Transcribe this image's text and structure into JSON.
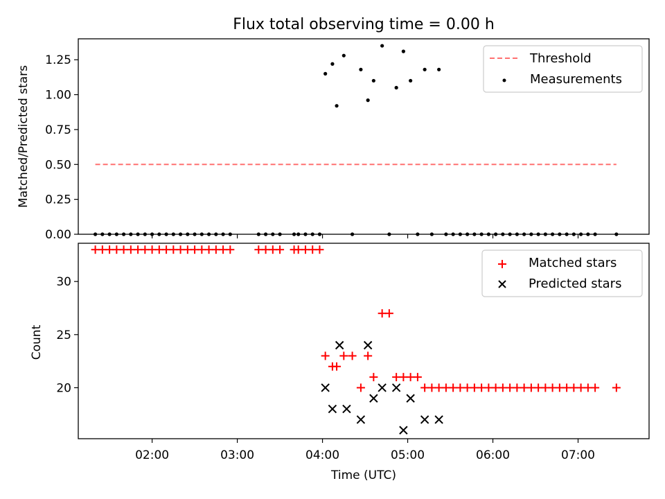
{
  "chart_data": [
    {
      "type": "scatter",
      "title": "Flux total observing time = 0.00 h",
      "xlabel": "",
      "ylabel": "Matched/Predicted stars",
      "xlim": [
        "01:08",
        "07:50"
      ],
      "ylim": [
        0,
        1.4
      ],
      "yticks": [
        "0.00",
        "0.25",
        "0.50",
        "0.75",
        "1.00",
        "1.25"
      ],
      "legend_position": "top-right",
      "series": [
        {
          "name": "Threshold",
          "style": "dashed-line",
          "color": "#ff7070",
          "points": [
            [
              "01:20",
              0.5
            ],
            [
              "07:27",
              0.5
            ]
          ]
        },
        {
          "name": "Measurements",
          "style": "dot",
          "color": "#000000",
          "points": [
            [
              "01:20",
              0
            ],
            [
              "01:25",
              0
            ],
            [
              "01:30",
              0
            ],
            [
              "01:35",
              0
            ],
            [
              "01:40",
              0
            ],
            [
              "01:45",
              0
            ],
            [
              "01:50",
              0
            ],
            [
              "01:55",
              0
            ],
            [
              "02:00",
              0
            ],
            [
              "02:05",
              0
            ],
            [
              "02:10",
              0
            ],
            [
              "02:15",
              0
            ],
            [
              "02:20",
              0
            ],
            [
              "02:25",
              0
            ],
            [
              "02:30",
              0
            ],
            [
              "02:35",
              0
            ],
            [
              "02:40",
              0
            ],
            [
              "02:45",
              0
            ],
            [
              "02:50",
              0
            ],
            [
              "02:55",
              0
            ],
            [
              "03:15",
              0
            ],
            [
              "03:20",
              0
            ],
            [
              "03:25",
              0
            ],
            [
              "03:30",
              0
            ],
            [
              "03:40",
              0
            ],
            [
              "03:43",
              0
            ],
            [
              "03:48",
              0
            ],
            [
              "03:53",
              0
            ],
            [
              "03:58",
              0
            ],
            [
              "04:02",
              1.15
            ],
            [
              "04:07",
              1.22
            ],
            [
              "04:10",
              0.92
            ],
            [
              "04:15",
              1.28
            ],
            [
              "04:21",
              0
            ],
            [
              "04:27",
              1.18
            ],
            [
              "04:32",
              0.96
            ],
            [
              "04:36",
              1.1
            ],
            [
              "04:42",
              1.35
            ],
            [
              "04:47",
              0
            ],
            [
              "04:52",
              1.05
            ],
            [
              "04:57",
              1.31
            ],
            [
              "05:02",
              1.1
            ],
            [
              "05:07",
              0
            ],
            [
              "05:12",
              1.18
            ],
            [
              "05:17",
              0
            ],
            [
              "05:22",
              1.18
            ],
            [
              "05:27",
              0
            ],
            [
              "05:32",
              0
            ],
            [
              "05:37",
              0
            ],
            [
              "05:42",
              0
            ],
            [
              "05:47",
              0
            ],
            [
              "05:52",
              0
            ],
            [
              "05:57",
              0
            ],
            [
              "06:02",
              0
            ],
            [
              "06:07",
              0
            ],
            [
              "06:12",
              0
            ],
            [
              "06:17",
              0
            ],
            [
              "06:22",
              0
            ],
            [
              "06:27",
              0
            ],
            [
              "06:32",
              0
            ],
            [
              "06:37",
              0
            ],
            [
              "06:42",
              0
            ],
            [
              "06:47",
              0
            ],
            [
              "06:52",
              0
            ],
            [
              "06:57",
              0
            ],
            [
              "07:02",
              0
            ],
            [
              "07:07",
              0
            ],
            [
              "07:12",
              0
            ],
            [
              "07:27",
              0
            ]
          ]
        }
      ]
    },
    {
      "type": "scatter",
      "title": "",
      "xlabel": "Time (UTC)",
      "ylabel": "Count",
      "xlim": [
        "01:08",
        "07:50"
      ],
      "ylim": [
        15.2,
        33.6
      ],
      "yticks": [
        "20",
        "25",
        "30"
      ],
      "xticks": [
        "02:00",
        "03:00",
        "04:00",
        "05:00",
        "06:00",
        "07:00"
      ],
      "legend_position": "top-right",
      "series": [
        {
          "name": "Matched stars",
          "style": "plus",
          "color": "#ff0000",
          "points": [
            [
              "01:20",
              33
            ],
            [
              "01:25",
              33
            ],
            [
              "01:30",
              33
            ],
            [
              "01:35",
              33
            ],
            [
              "01:40",
              33
            ],
            [
              "01:45",
              33
            ],
            [
              "01:50",
              33
            ],
            [
              "01:55",
              33
            ],
            [
              "02:00",
              33
            ],
            [
              "02:05",
              33
            ],
            [
              "02:10",
              33
            ],
            [
              "02:15",
              33
            ],
            [
              "02:20",
              33
            ],
            [
              "02:25",
              33
            ],
            [
              "02:30",
              33
            ],
            [
              "02:35",
              33
            ],
            [
              "02:40",
              33
            ],
            [
              "02:45",
              33
            ],
            [
              "02:50",
              33
            ],
            [
              "02:55",
              33
            ],
            [
              "03:15",
              33
            ],
            [
              "03:20",
              33
            ],
            [
              "03:25",
              33
            ],
            [
              "03:30",
              33
            ],
            [
              "03:40",
              33
            ],
            [
              "03:43",
              33
            ],
            [
              "03:48",
              33
            ],
            [
              "03:53",
              33
            ],
            [
              "03:58",
              33
            ],
            [
              "04:02",
              23
            ],
            [
              "04:07",
              22
            ],
            [
              "04:10",
              22
            ],
            [
              "04:15",
              23
            ],
            [
              "04:21",
              23
            ],
            [
              "04:27",
              20
            ],
            [
              "04:32",
              23
            ],
            [
              "04:36",
              21
            ],
            [
              "04:42",
              27
            ],
            [
              "04:47",
              27
            ],
            [
              "04:52",
              21
            ],
            [
              "04:57",
              21
            ],
            [
              "05:02",
              21
            ],
            [
              "05:07",
              21
            ],
            [
              "05:12",
              20
            ],
            [
              "05:17",
              20
            ],
            [
              "05:22",
              20
            ],
            [
              "05:27",
              20
            ],
            [
              "05:32",
              20
            ],
            [
              "05:37",
              20
            ],
            [
              "05:42",
              20
            ],
            [
              "05:47",
              20
            ],
            [
              "05:52",
              20
            ],
            [
              "05:57",
              20
            ],
            [
              "06:02",
              20
            ],
            [
              "06:07",
              20
            ],
            [
              "06:12",
              20
            ],
            [
              "06:17",
              20
            ],
            [
              "06:22",
              20
            ],
            [
              "06:27",
              20
            ],
            [
              "06:32",
              20
            ],
            [
              "06:37",
              20
            ],
            [
              "06:42",
              20
            ],
            [
              "06:47",
              20
            ],
            [
              "06:52",
              20
            ],
            [
              "06:57",
              20
            ],
            [
              "07:02",
              20
            ],
            [
              "07:07",
              20
            ],
            [
              "07:12",
              20
            ],
            [
              "07:27",
              20
            ]
          ]
        },
        {
          "name": "Predicted stars",
          "style": "x",
          "color": "#000000",
          "points": [
            [
              "04:02",
              20
            ],
            [
              "04:07",
              18
            ],
            [
              "04:12",
              24
            ],
            [
              "04:17",
              18
            ],
            [
              "04:27",
              17
            ],
            [
              "04:32",
              24
            ],
            [
              "04:36",
              19
            ],
            [
              "04:42",
              20
            ],
            [
              "04:52",
              20
            ],
            [
              "04:57",
              16
            ],
            [
              "05:02",
              19
            ],
            [
              "05:12",
              17
            ],
            [
              "05:22",
              17
            ]
          ]
        }
      ]
    }
  ]
}
